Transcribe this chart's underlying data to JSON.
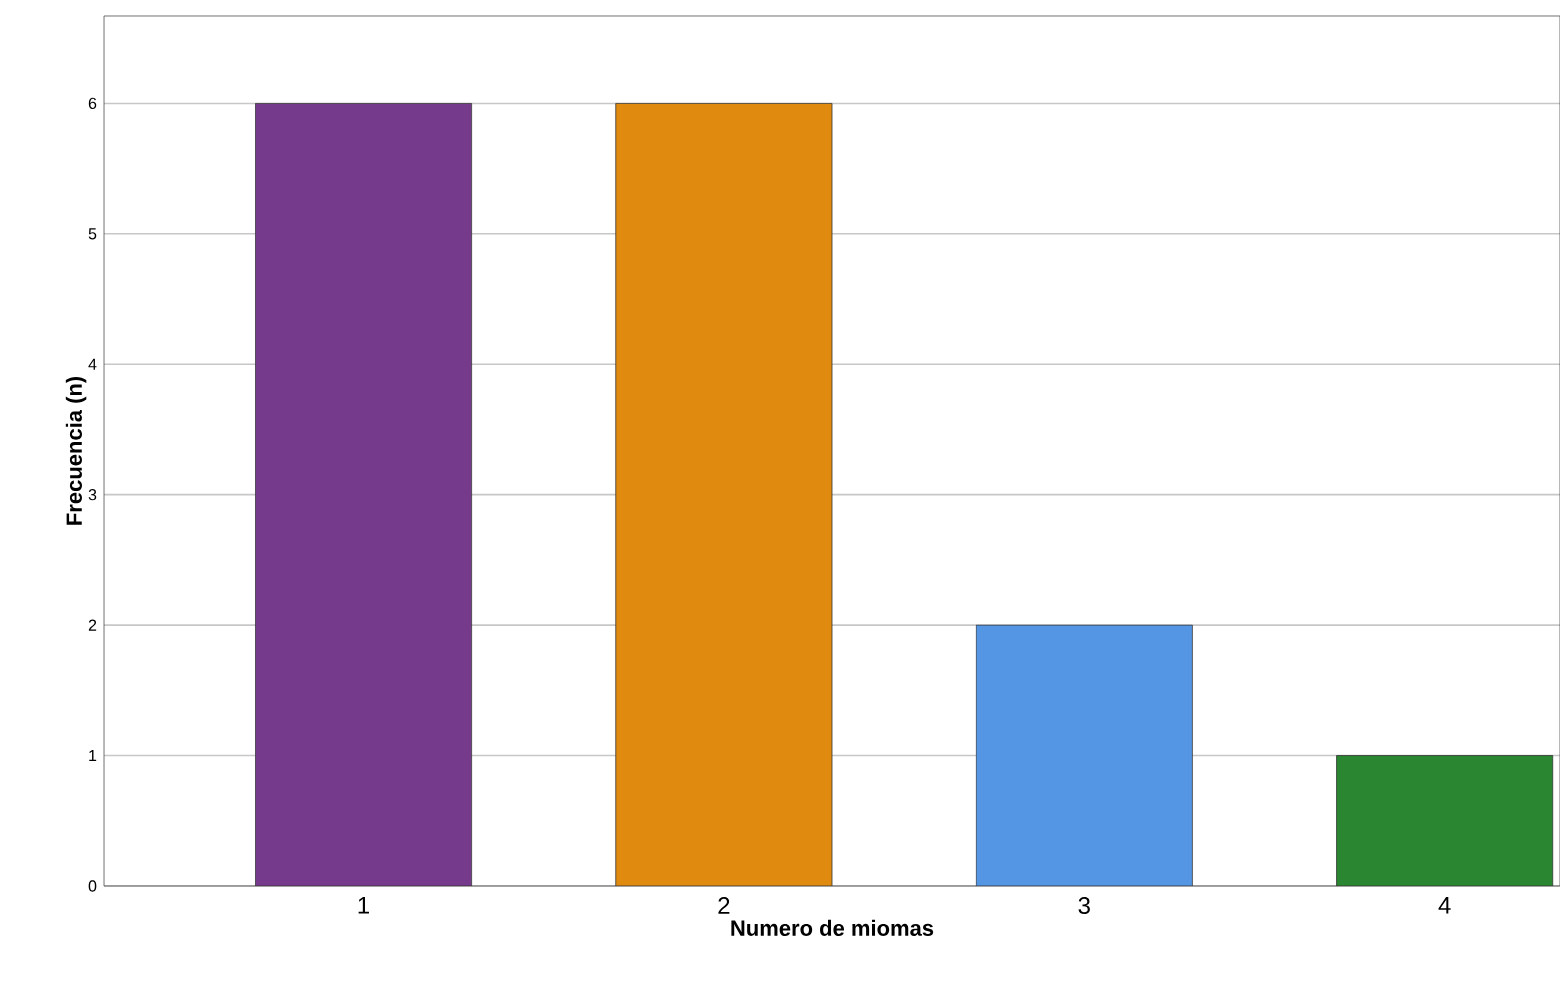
{
  "chart_data": {
    "type": "bar",
    "xlabel": "Numero de miomas",
    "ylabel": "Frecuencia (n)",
    "categories": [
      "1",
      "2",
      "3",
      "4"
    ],
    "values": [
      6,
      6,
      2,
      1
    ],
    "colors": [
      "#763a8c",
      "#e08b10",
      "#5496e4",
      "#2a8631"
    ],
    "ylim": [
      0,
      6.67
    ],
    "yticks": [
      0,
      1,
      2,
      3,
      4,
      5,
      6
    ],
    "grid": "y"
  }
}
